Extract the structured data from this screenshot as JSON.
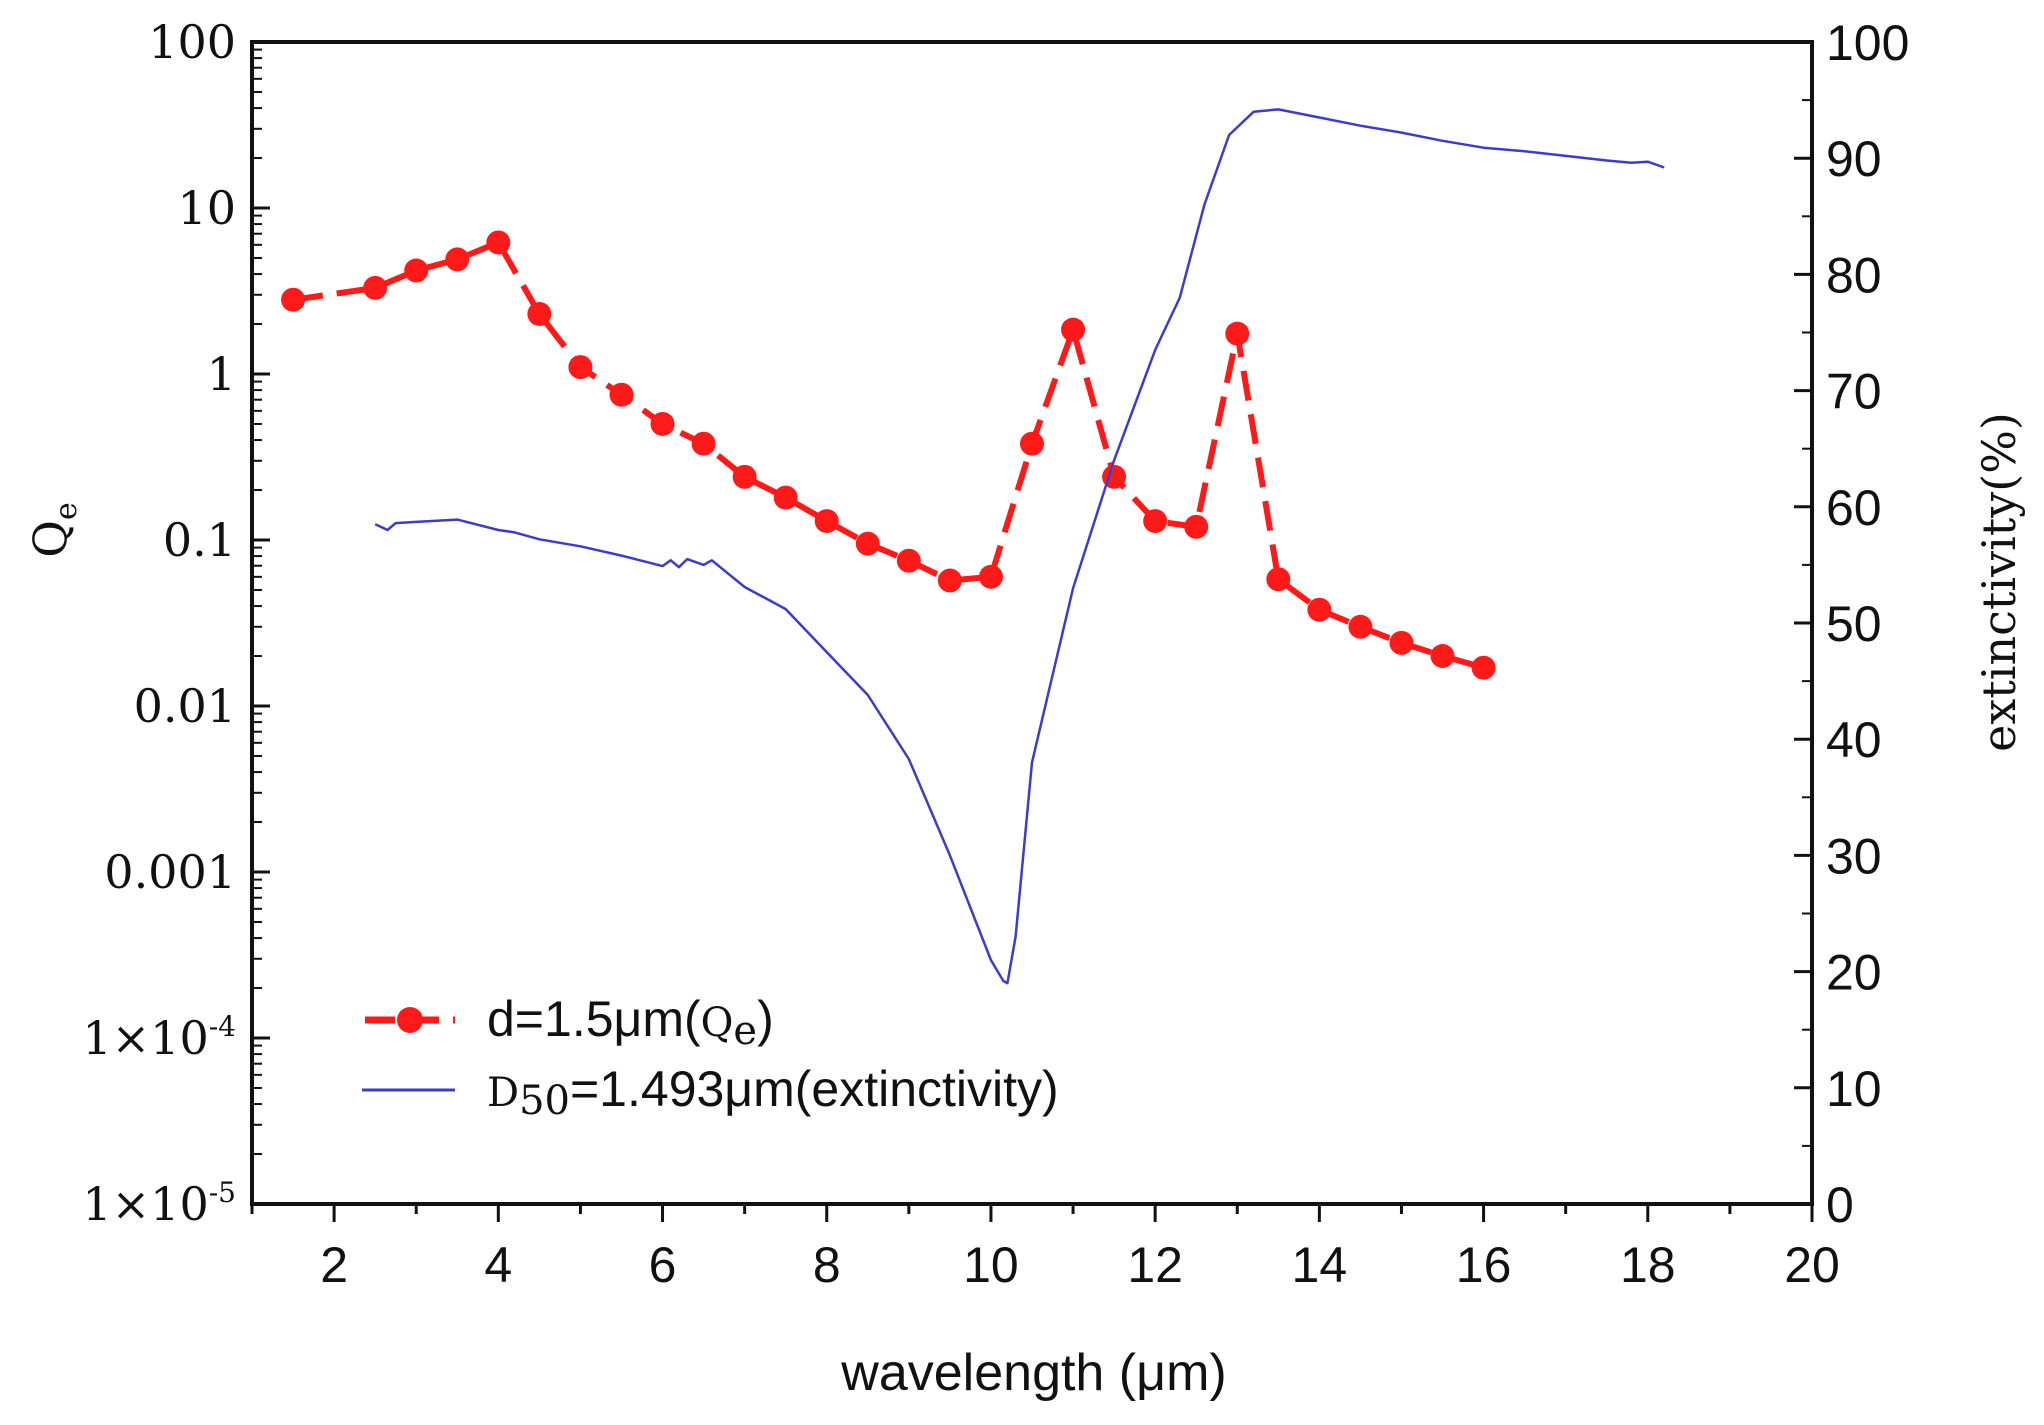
{
  "chart_data": {
    "type": "line",
    "xlabel": "wavelength (μm)",
    "ylabel_left": "Qe",
    "ylabel_left_main": "Q",
    "ylabel_left_sub": "e",
    "ylabel_right": "extinctivity(%)",
    "xlim": [
      1,
      20
    ],
    "ylim_left_log": [
      1e-05,
      100
    ],
    "ylim_right": [
      0,
      100
    ],
    "x_ticks": [
      {
        "value": 2,
        "label": "2"
      },
      {
        "value": 4,
        "label": "4"
      },
      {
        "value": 6,
        "label": "6"
      },
      {
        "value": 8,
        "label": "8"
      },
      {
        "value": 10,
        "label": "10"
      },
      {
        "value": 12,
        "label": "12"
      },
      {
        "value": 14,
        "label": "14"
      },
      {
        "value": 16,
        "label": "16"
      },
      {
        "value": 18,
        "label": "18"
      },
      {
        "value": 20,
        "label": "20"
      }
    ],
    "y_left_ticks": [
      {
        "value": 100,
        "label": "100",
        "sup": ""
      },
      {
        "value": 10,
        "label": "10",
        "sup": ""
      },
      {
        "value": 1,
        "label": "1",
        "sup": ""
      },
      {
        "value": 0.1,
        "label": "0.1",
        "sup": ""
      },
      {
        "value": 0.01,
        "label": "0.01",
        "sup": ""
      },
      {
        "value": 0.001,
        "label": "0.001",
        "sup": ""
      },
      {
        "value": 0.0001,
        "label": "1×10",
        "sup": "-4"
      },
      {
        "value": 1e-05,
        "label": "1×10",
        "sup": "-5"
      }
    ],
    "y_right_ticks": [
      {
        "value": 0,
        "label": "0"
      },
      {
        "value": 10,
        "label": "10"
      },
      {
        "value": 20,
        "label": "20"
      },
      {
        "value": 30,
        "label": "30"
      },
      {
        "value": 40,
        "label": "40"
      },
      {
        "value": 50,
        "label": "50"
      },
      {
        "value": 60,
        "label": "60"
      },
      {
        "value": 70,
        "label": "70"
      },
      {
        "value": 80,
        "label": "80"
      },
      {
        "value": 90,
        "label": "90"
      },
      {
        "value": 100,
        "label": "100"
      }
    ],
    "series": [
      {
        "name": "d=1.5μm(Qe)",
        "legend_main": "d=1.5μm(",
        "legend_q": "Q",
        "legend_sub": "e",
        "legend_close": ")",
        "axis": "left",
        "color": "#ff1a1a",
        "style": "dashed-markers",
        "x": [
          1.5,
          2.5,
          3,
          3.5,
          4,
          4.5,
          5,
          5.5,
          6,
          6.5,
          7,
          7.5,
          8,
          8.5,
          9,
          9.5,
          10,
          10.5,
          11,
          11.5,
          12,
          12.5,
          13,
          13.5,
          14,
          14.5,
          15,
          15.5,
          16
        ],
        "y": [
          2.8,
          3.3,
          4.2,
          4.9,
          6.2,
          2.3,
          1.1,
          0.75,
          0.5,
          0.38,
          0.24,
          0.18,
          0.13,
          0.095,
          0.075,
          0.057,
          0.06,
          0.38,
          1.85,
          0.24,
          0.13,
          0.12,
          1.75,
          0.058,
          0.038,
          0.03,
          0.024,
          0.02,
          0.017
        ]
      },
      {
        "name": "D50=1.493μm(extinctivity)",
        "legend_d": "D",
        "legend_sub": "50",
        "legend_rest": "=1.493μm(extinctivity)",
        "axis": "right",
        "color": "#3c3ccc",
        "style": "solid",
        "x": [
          2.5,
          2.65,
          2.75,
          3.0,
          3.5,
          4.0,
          4.2,
          4.5,
          5.0,
          5.5,
          6.0,
          6.1,
          6.2,
          6.3,
          6.5,
          6.6,
          7.0,
          7.5,
          8.0,
          8.5,
          9.0,
          9.5,
          10.0,
          10.15,
          10.2,
          10.3,
          10.5,
          11.0,
          11.5,
          12.0,
          12.3,
          12.6,
          12.9,
          13.2,
          13.5,
          14.0,
          14.5,
          15.0,
          15.5,
          16.0,
          16.5,
          17.0,
          17.5,
          17.8,
          18.0,
          18.2
        ],
        "y": [
          58.5,
          58.0,
          58.6,
          58.7,
          58.9,
          58.0,
          57.8,
          57.2,
          56.6,
          55.8,
          54.9,
          55.4,
          54.8,
          55.5,
          55.0,
          55.4,
          53.1,
          51.2,
          47.5,
          43.8,
          38.3,
          30.0,
          21.0,
          19.2,
          19.0,
          23.0,
          38.0,
          53.0,
          64.0,
          73.5,
          78.0,
          86.0,
          92.0,
          94.0,
          94.2,
          93.5,
          92.8,
          92.2,
          91.5,
          90.9,
          90.6,
          90.2,
          89.8,
          89.6,
          89.7,
          89.2
        ]
      }
    ]
  }
}
